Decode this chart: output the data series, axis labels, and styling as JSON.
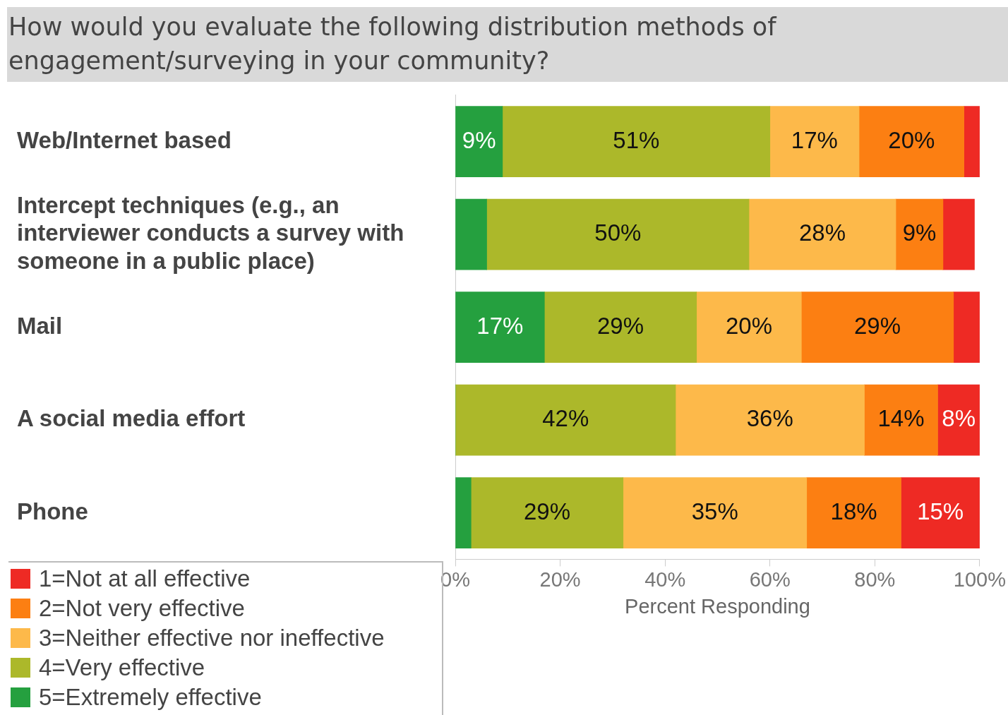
{
  "chart_data": {
    "type": "bar",
    "orientation": "horizontal",
    "stacked": true,
    "title": "How would you evaluate the following distribution methods of engagement/surveying in your community?",
    "xlabel": "Percent Responding",
    "categories": [
      "Web/Internet based",
      "Intercept techniques (e.g., an interviewer conducts a survey with someone in a public place)",
      "Mail",
      "A social media effort",
      "Phone"
    ],
    "series": [
      {
        "name": "5=Extremely effective",
        "color": "#25a03f",
        "values": [
          9,
          6,
          17,
          0,
          3
        ],
        "value_labels": [
          "9%",
          null,
          "17%",
          null,
          null
        ]
      },
      {
        "name": "4=Very effective",
        "color": "#acb82a",
        "values": [
          51,
          50,
          29,
          42,
          29
        ],
        "value_labels": [
          "51%",
          "50%",
          "29%",
          "42%",
          "29%"
        ]
      },
      {
        "name": "3=Neither effective nor ineffective",
        "color": "#fdb94a",
        "values": [
          17,
          28,
          20,
          36,
          35
        ],
        "value_labels": [
          "17%",
          "28%",
          "20%",
          "36%",
          "35%"
        ]
      },
      {
        "name": "2=Not very effective",
        "color": "#fc7f12",
        "values": [
          20,
          9,
          29,
          14,
          18
        ],
        "value_labels": [
          "20%",
          "9%",
          "29%",
          "14%",
          "18%"
        ]
      },
      {
        "name": "1=Not at all effective",
        "color": "#ee2a24",
        "values": [
          3,
          6,
          5,
          8,
          15
        ],
        "value_labels": [
          null,
          null,
          null,
          "8%",
          "15%"
        ]
      }
    ],
    "xlim": [
      0,
      100
    ],
    "xticks": [
      {
        "value": 0,
        "label": "0%"
      },
      {
        "value": 20,
        "label": "20%"
      },
      {
        "value": 40,
        "label": "40%"
      },
      {
        "value": 60,
        "label": "60%"
      },
      {
        "value": 80,
        "label": "80%"
      },
      {
        "value": 100,
        "label": "100%"
      }
    ],
    "legend": "bottom left",
    "grid": false
  }
}
